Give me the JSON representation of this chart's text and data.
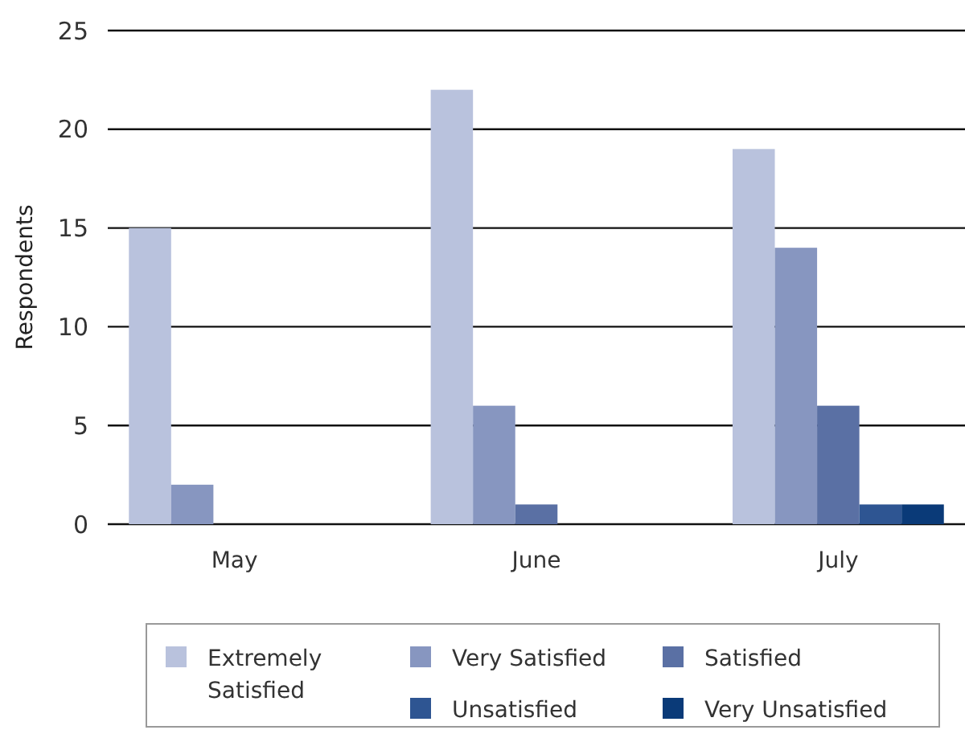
{
  "chart_data": {
    "type": "bar",
    "ylabel": "Respondents",
    "categories": [
      "May",
      "June",
      "July"
    ],
    "series": [
      {
        "name": "Extremely Satisfied",
        "color": "#b9c2dd",
        "values": [
          15,
          22,
          19
        ]
      },
      {
        "name": "Very Satisfied",
        "color": "#8796c0",
        "values": [
          2,
          6,
          14
        ]
      },
      {
        "name": "Satisfied",
        "color": "#5a70a4",
        "values": [
          0,
          1,
          6
        ]
      },
      {
        "name": "Unsatisfied",
        "color": "#2e5592",
        "values": [
          0,
          0,
          1
        ]
      },
      {
        "name": "Very Unsatisfied",
        "color": "#0a3a78",
        "values": [
          0,
          0,
          1
        ]
      }
    ],
    "ylim": [
      0,
      25
    ],
    "yticks": [
      0,
      5,
      10,
      15,
      20,
      25
    ],
    "grid": "y",
    "legend": "bottom"
  }
}
